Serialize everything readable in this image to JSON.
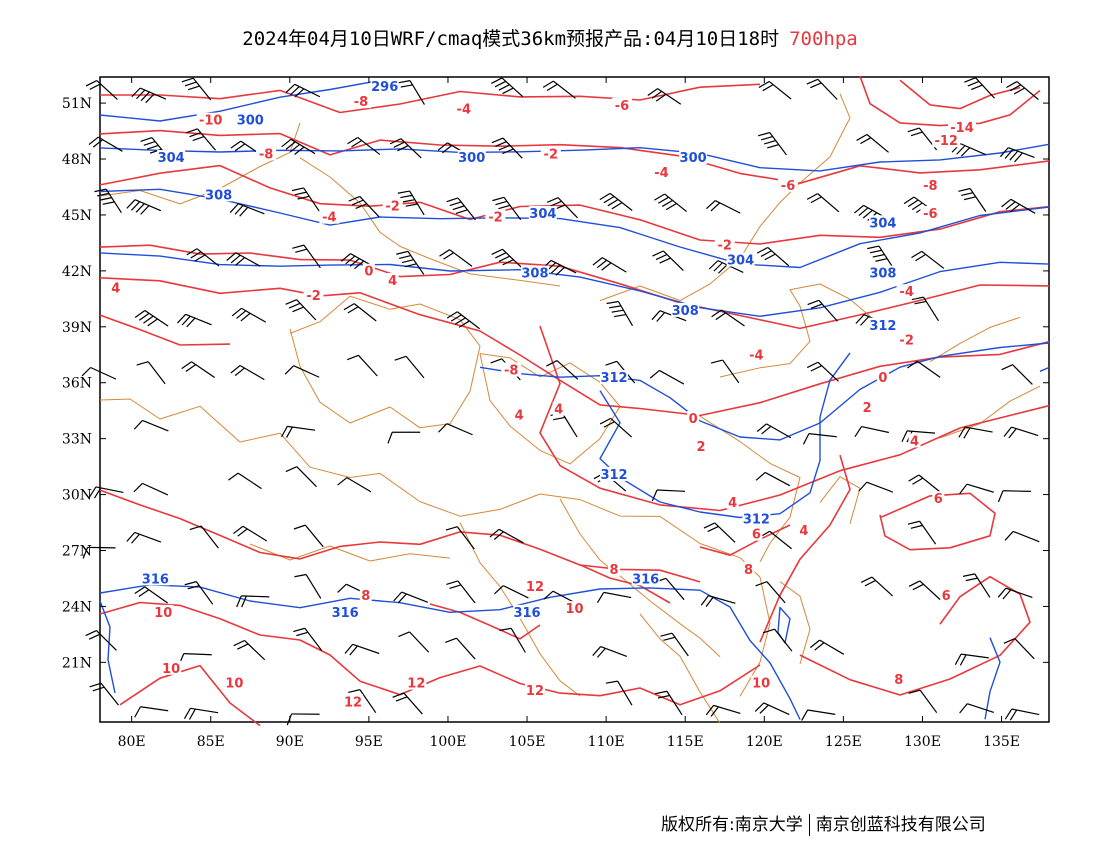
{
  "title": {
    "main": "2024年04月10日WRF/cmaq模式36km预报产品:04月10日18时",
    "level": "700hpa"
  },
  "footer": {
    "copyright": "版权所有:南京大学",
    "company": "南京创蓝科技有限公司"
  },
  "colors": {
    "temperature": "#e8383d",
    "height": "#1f4fd8",
    "border": "#d4893a",
    "wind": "#000000"
  },
  "axes": {
    "lat_labels": [
      "51N",
      "48N",
      "45N",
      "42N",
      "39N",
      "36N",
      "33N",
      "30N",
      "27N",
      "24N",
      "21N"
    ],
    "lon_labels": [
      "80E",
      "85E",
      "90E",
      "95E",
      "100E",
      "105E",
      "110E",
      "115E",
      "120E",
      "125E",
      "130E",
      "135E"
    ]
  },
  "height_labels": [
    {
      "text": "296",
      "lon": 96.0,
      "lat": 51.8
    },
    {
      "text": "300",
      "lon": 87.5,
      "lat": 50.0
    },
    {
      "text": "304",
      "lon": 82.5,
      "lat": 48.0
    },
    {
      "text": "300",
      "lon": 101.5,
      "lat": 48.0
    },
    {
      "text": "300",
      "lon": 115.5,
      "lat": 48.0
    },
    {
      "text": "308",
      "lon": 85.5,
      "lat": 46.0
    },
    {
      "text": "304",
      "lon": 106.0,
      "lat": 45.0
    },
    {
      "text": "304",
      "lon": 127.5,
      "lat": 44.5
    },
    {
      "text": "304",
      "lon": 118.5,
      "lat": 42.5
    },
    {
      "text": "308",
      "lon": 105.5,
      "lat": 41.8
    },
    {
      "text": "308",
      "lon": 127.5,
      "lat": 41.8
    },
    {
      "text": "308",
      "lon": 115.0,
      "lat": 39.8
    },
    {
      "text": "312",
      "lon": 127.5,
      "lat": 39.0
    },
    {
      "text": "312",
      "lon": 110.5,
      "lat": 36.2
    },
    {
      "text": "312",
      "lon": 110.5,
      "lat": 31.0
    },
    {
      "text": "312",
      "lon": 119.5,
      "lat": 28.6
    },
    {
      "text": "316",
      "lon": 81.5,
      "lat": 25.4
    },
    {
      "text": "316",
      "lon": 112.5,
      "lat": 25.4
    },
    {
      "text": "316",
      "lon": 93.5,
      "lat": 23.6
    },
    {
      "text": "316",
      "lon": 105.0,
      "lat": 23.6
    }
  ],
  "temperature_labels": [
    {
      "text": "-10",
      "lon": 85.0,
      "lat": 50.0
    },
    {
      "text": "-8",
      "lon": 94.5,
      "lat": 51.0
    },
    {
      "text": "-4",
      "lon": 101.0,
      "lat": 50.6
    },
    {
      "text": "-6",
      "lon": 111.0,
      "lat": 50.8
    },
    {
      "text": "-14",
      "lon": 132.5,
      "lat": 49.6
    },
    {
      "text": "-12",
      "lon": 131.5,
      "lat": 48.9
    },
    {
      "text": "-8",
      "lon": 88.5,
      "lat": 48.2
    },
    {
      "text": "-2",
      "lon": 106.5,
      "lat": 48.2
    },
    {
      "text": "-4",
      "lon": 113.5,
      "lat": 47.2
    },
    {
      "text": "-6",
      "lon": 121.5,
      "lat": 46.5
    },
    {
      "text": "-8",
      "lon": 130.5,
      "lat": 46.5
    },
    {
      "text": "-6",
      "lon": 130.5,
      "lat": 45.0
    },
    {
      "text": "-2",
      "lon": 96.5,
      "lat": 45.4
    },
    {
      "text": "-4",
      "lon": 92.5,
      "lat": 44.8
    },
    {
      "text": "-2",
      "lon": 103.0,
      "lat": 44.8
    },
    {
      "text": "-2",
      "lon": 117.5,
      "lat": 43.3
    },
    {
      "text": "0",
      "lon": 95.0,
      "lat": 41.9
    },
    {
      "text": "4",
      "lon": 96.5,
      "lat": 41.4
    },
    {
      "text": "4",
      "lon": 79.0,
      "lat": 41.0
    },
    {
      "text": "-2",
      "lon": 91.5,
      "lat": 40.6
    },
    {
      "text": "-4",
      "lon": 129.0,
      "lat": 40.8
    },
    {
      "text": "-2",
      "lon": 129.0,
      "lat": 38.2
    },
    {
      "text": "-4",
      "lon": 119.5,
      "lat": 37.4
    },
    {
      "text": "-8",
      "lon": 104.0,
      "lat": 36.6
    },
    {
      "text": "0",
      "lon": 127.5,
      "lat": 36.2
    },
    {
      "text": "2",
      "lon": 126.5,
      "lat": 34.6
    },
    {
      "text": "4",
      "lon": 104.5,
      "lat": 34.2
    },
    {
      "text": "4",
      "lon": 107.0,
      "lat": 34.5
    },
    {
      "text": "0",
      "lon": 115.5,
      "lat": 34.0
    },
    {
      "text": "4",
      "lon": 129.5,
      "lat": 32.8
    },
    {
      "text": "2",
      "lon": 116.0,
      "lat": 32.5
    },
    {
      "text": "4",
      "lon": 118.0,
      "lat": 29.5
    },
    {
      "text": "6",
      "lon": 131.0,
      "lat": 29.7
    },
    {
      "text": "4",
      "lon": 122.5,
      "lat": 28.0
    },
    {
      "text": "6",
      "lon": 119.5,
      "lat": 27.8
    },
    {
      "text": "8",
      "lon": 119.0,
      "lat": 25.9
    },
    {
      "text": "8",
      "lon": 110.5,
      "lat": 25.9
    },
    {
      "text": "12",
      "lon": 105.5,
      "lat": 25.0
    },
    {
      "text": "8",
      "lon": 94.8,
      "lat": 24.5
    },
    {
      "text": "6",
      "lon": 131.5,
      "lat": 24.5
    },
    {
      "text": "10",
      "lon": 82.0,
      "lat": 23.6
    },
    {
      "text": "10",
      "lon": 108.0,
      "lat": 23.8
    },
    {
      "text": "10",
      "lon": 82.5,
      "lat": 20.6
    },
    {
      "text": "10",
      "lon": 86.5,
      "lat": 19.8
    },
    {
      "text": "12",
      "lon": 98.0,
      "lat": 19.8
    },
    {
      "text": "12",
      "lon": 105.5,
      "lat": 19.4
    },
    {
      "text": "10",
      "lon": 119.8,
      "lat": 19.8
    },
    {
      "text": "8",
      "lon": 128.5,
      "lat": 20.0
    },
    {
      "text": "12",
      "lon": 94.0,
      "lat": 18.8
    }
  ]
}
